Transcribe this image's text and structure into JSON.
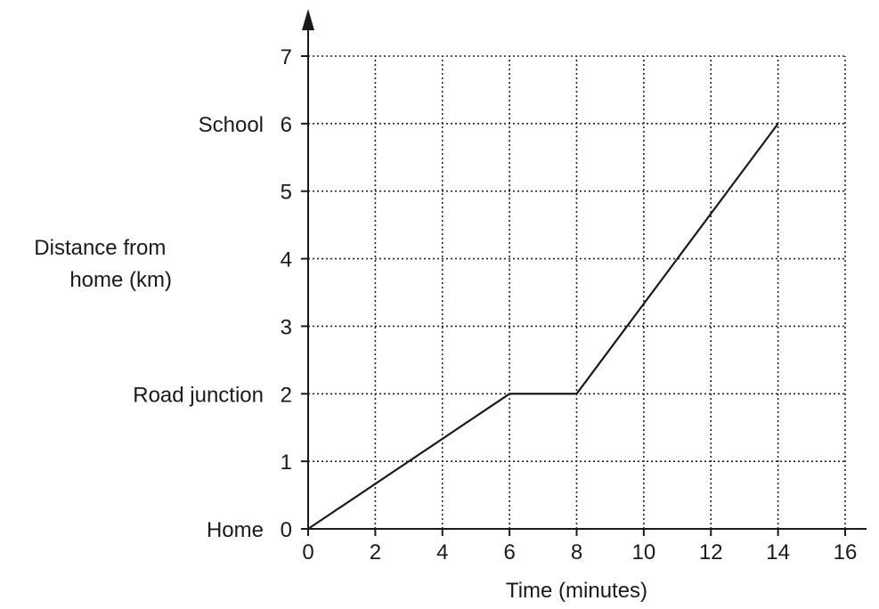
{
  "chart_data": {
    "type": "line",
    "title": "",
    "xlabel": "Time (minutes)",
    "ylabel_lines": [
      "Distance from",
      "home (km)"
    ],
    "xlim": [
      0,
      16
    ],
    "ylim": [
      0,
      7
    ],
    "x_ticks": [
      0,
      2,
      4,
      6,
      8,
      10,
      12,
      14,
      16
    ],
    "y_ticks": [
      0,
      1,
      2,
      3,
      4,
      5,
      6,
      7
    ],
    "y_tick_names": [
      {
        "value": 0,
        "name": "Home"
      },
      {
        "value": 2,
        "name": "Road junction"
      },
      {
        "value": 6,
        "name": "School"
      }
    ],
    "grid": true,
    "grid_style": "dotted",
    "series": [
      {
        "x": [
          0,
          6,
          8,
          14
        ],
        "y": [
          0,
          2,
          2,
          6
        ]
      }
    ],
    "colors": {
      "line": "#1a1a1a",
      "grid": "#222222"
    }
  }
}
